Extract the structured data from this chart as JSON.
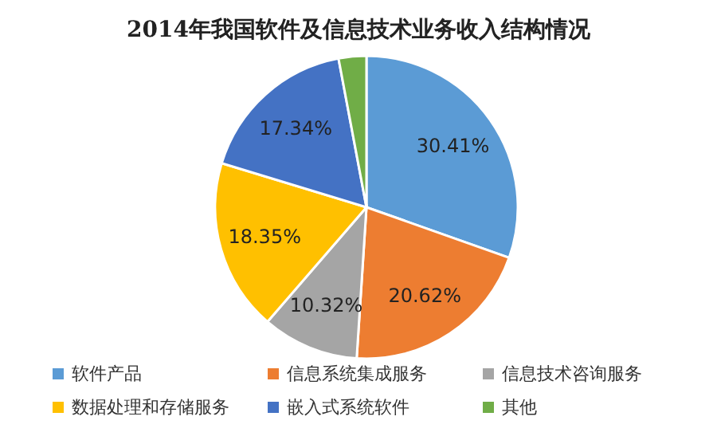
{
  "chart_data": {
    "type": "pie",
    "title": "2014年我国软件及信息技术业务收入结构情况",
    "categories": [
      "软件产品",
      "信息系统集成服务",
      "信息技术咨询服务",
      "数据处理和存储服务",
      "嵌入式系统软件",
      "其他"
    ],
    "values": [
      30.41,
      20.62,
      10.32,
      18.35,
      17.34,
      2.96
    ],
    "colors": [
      "#5b9bd5",
      "#ed7d31",
      "#a5a5a5",
      "#ffc000",
      "#4472c4",
      "#70ad47"
    ],
    "value_labels": [
      "30.41%",
      "20.62%",
      "10.32%",
      "18.35%",
      "17.34%",
      null
    ],
    "legend": "bottom"
  }
}
